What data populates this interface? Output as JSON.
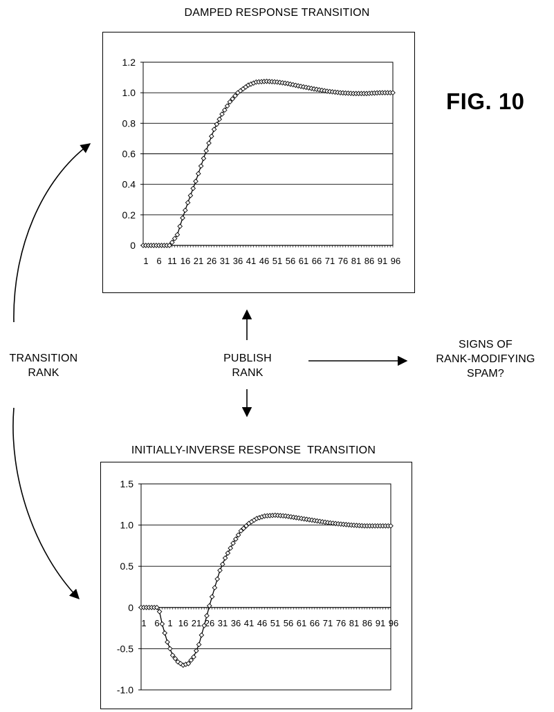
{
  "figure_label": "FIG. 10",
  "labels": {
    "transition_rank": [
      "TRANSITION",
      "RANK"
    ],
    "publish_rank": [
      "PUBLISH",
      "RANK"
    ],
    "spam_question": [
      "SIGNS OF",
      "RANK-MODIFYING",
      "SPAM?"
    ]
  },
  "chart_data": [
    {
      "type": "line",
      "title": "DAMPED RESPONSE TRANSITION",
      "xlabel": "",
      "ylabel": "",
      "x_tick_labels": [
        "1",
        "6",
        "11",
        "16",
        "21",
        "26",
        "31",
        "36",
        "41",
        "46",
        "51",
        "56",
        "61",
        "66",
        "71",
        "76",
        "81",
        "86",
        "91",
        "96"
      ],
      "y_tick_labels": [
        "0",
        "0.2",
        "0.4",
        "0.6",
        "0.8",
        "1.0",
        "1.2"
      ],
      "ylim": [
        0,
        1.2
      ],
      "xlim": [
        1,
        96
      ],
      "grid": "horizontal",
      "marker": "diamond",
      "series": [
        {
          "points": [
            [
              1,
              0
            ],
            [
              11,
              0
            ],
            [
              12,
              0.02
            ],
            [
              14,
              0.07
            ],
            [
              16,
              0.18
            ],
            [
              18,
              0.28
            ],
            [
              21,
              0.42
            ],
            [
              24,
              0.57
            ],
            [
              26,
              0.67
            ],
            [
              28,
              0.76
            ],
            [
              31,
              0.86
            ],
            [
              34,
              0.94
            ],
            [
              37,
              1.0
            ],
            [
              41,
              1.05
            ],
            [
              44,
              1.07
            ],
            [
              48,
              1.075
            ],
            [
              52,
              1.07
            ],
            [
              56,
              1.06
            ],
            [
              60,
              1.045
            ],
            [
              66,
              1.025
            ],
            [
              71,
              1.01
            ],
            [
              76,
              1.0
            ],
            [
              81,
              0.995
            ],
            [
              86,
              0.995
            ],
            [
              91,
              1.0
            ],
            [
              96,
              1.0
            ]
          ]
        }
      ]
    },
    {
      "type": "line",
      "title": "INITIALLY-INVERSE RESPONSE  TRANSITION",
      "xlabel": "",
      "ylabel": "",
      "x_tick_labels": [
        "1",
        "6",
        "11",
        "16",
        "21",
        "26",
        "31",
        "36",
        "41",
        "46",
        "51",
        "56",
        "61",
        "66",
        "71",
        "76",
        "81",
        "86",
        "91",
        "96"
      ],
      "x_tick_display": [
        "1",
        "6",
        "1",
        "16",
        "21",
        "26",
        "31",
        "36",
        "41",
        "46",
        "51",
        "56",
        "61",
        "66",
        "71",
        "76",
        "81",
        "86",
        "91",
        "96"
      ],
      "y_tick_labels": [
        "-1.0",
        "-0.5",
        "0",
        "0.5",
        "1.0",
        "1.5"
      ],
      "ylim": [
        -1.0,
        1.5
      ],
      "xlim": [
        1,
        96
      ],
      "grid": "horizontal",
      "marker": "diamond",
      "series": [
        {
          "points": [
            [
              1,
              0
            ],
            [
              7,
              0
            ],
            [
              8,
              -0.05
            ],
            [
              9,
              -0.2
            ],
            [
              11,
              -0.42
            ],
            [
              13,
              -0.58
            ],
            [
              15,
              -0.66
            ],
            [
              17,
              -0.7
            ],
            [
              19,
              -0.68
            ],
            [
              21,
              -0.6
            ],
            [
              23,
              -0.45
            ],
            [
              25,
              -0.22
            ],
            [
              27,
              0.02
            ],
            [
              29,
              0.24
            ],
            [
              31,
              0.45
            ],
            [
              33,
              0.6
            ],
            [
              36,
              0.78
            ],
            [
              39,
              0.93
            ],
            [
              42,
              1.02
            ],
            [
              45,
              1.08
            ],
            [
              48,
              1.11
            ],
            [
              52,
              1.12
            ],
            [
              56,
              1.11
            ],
            [
              60,
              1.09
            ],
            [
              64,
              1.07
            ],
            [
              68,
              1.05
            ],
            [
              72,
              1.03
            ],
            [
              76,
              1.015
            ],
            [
              81,
              1.0
            ],
            [
              86,
              0.99
            ],
            [
              91,
              0.99
            ],
            [
              96,
              0.99
            ]
          ]
        }
      ]
    }
  ]
}
